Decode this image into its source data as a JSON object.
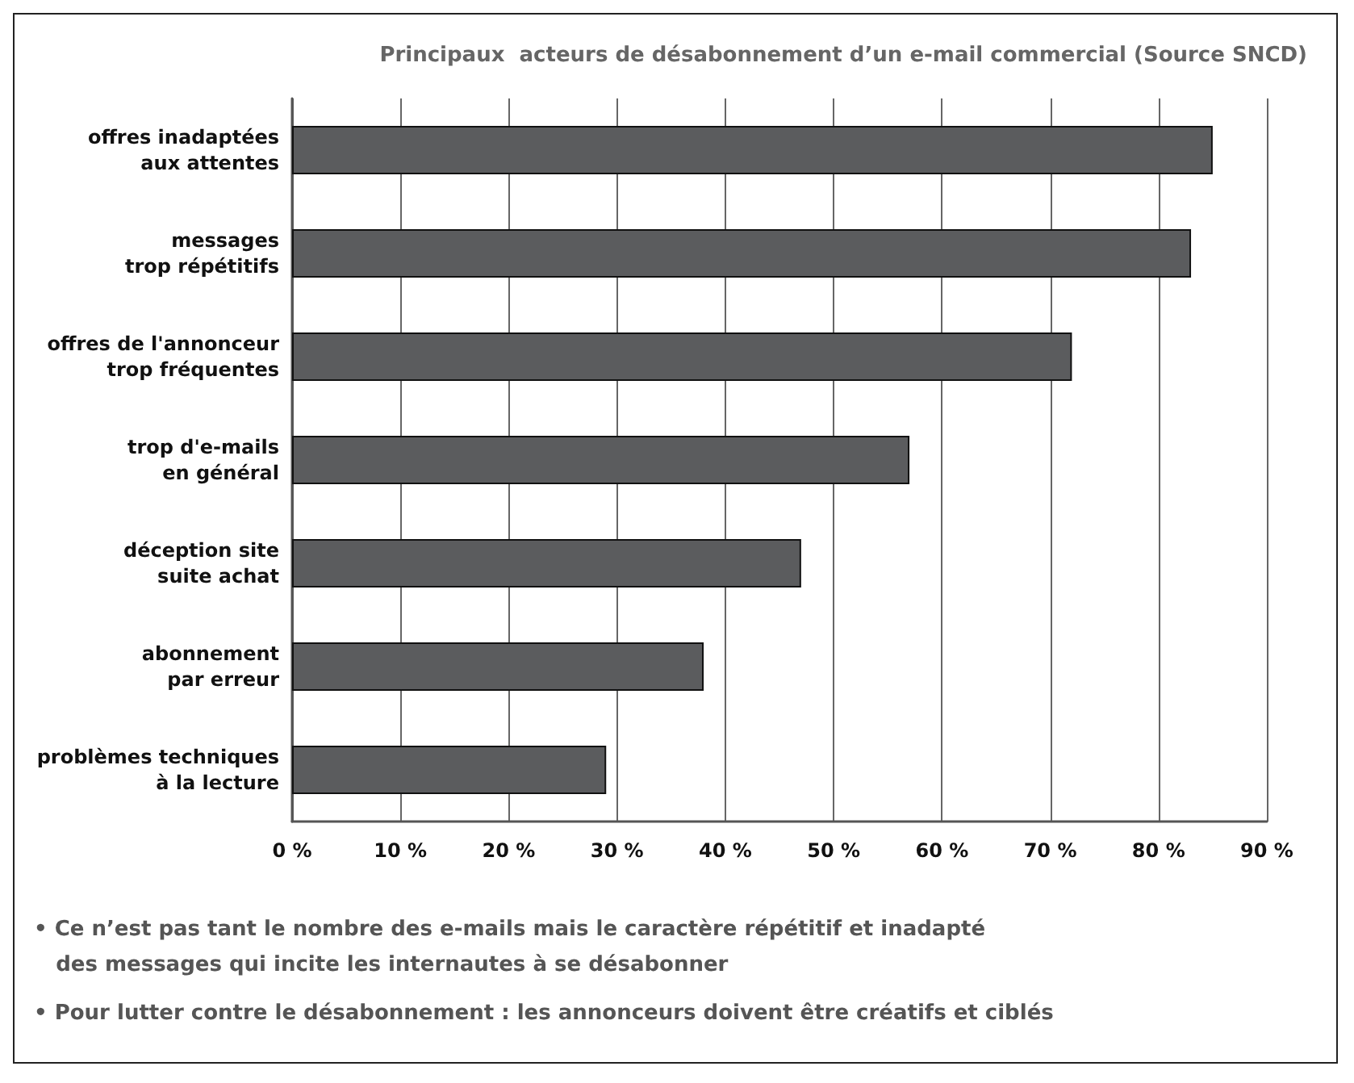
{
  "chart_data": {
    "type": "bar",
    "orientation": "horizontal",
    "title": "Principaux  acteurs de désabonnement d’un e-mail commercial (Source SNCD)",
    "categories": [
      "offres inadaptées\naux attentes",
      "messages\ntrop répétitifs",
      "offres de l'annonceur\ntrop fréquentes",
      "trop d'e-mails\nen général",
      "déception site\nsuite achat",
      "abonnement\npar erreur",
      "problèmes techniques\nà la lecture"
    ],
    "values": [
      85,
      83,
      72,
      57,
      47,
      38,
      29
    ],
    "color": "#5b5c5e",
    "xlim": [
      0,
      90
    ],
    "xticks": [
      {
        "value": 0,
        "label": "0 %"
      },
      {
        "value": 10,
        "label": "10 %"
      },
      {
        "value": 20,
        "label": "20 %"
      },
      {
        "value": 30,
        "label": "30 %"
      },
      {
        "value": 40,
        "label": "40 %"
      },
      {
        "value": 50,
        "label": "50 %"
      },
      {
        "value": 60,
        "label": "60 %"
      },
      {
        "value": 70,
        "label": "70 %"
      },
      {
        "value": 80,
        "label": "80 %"
      },
      {
        "value": 90,
        "label": "90 %"
      }
    ],
    "grid": "x",
    "annotations": [
      "• Ce n’est pas tant le nombre des e-mails mais le caractère répétitif et inadapté\n   des messages qui incite les internautes à se désabonner",
      "• Pour lutter contre le désabonnement : les annonceurs doivent être créatifs et ciblés"
    ]
  }
}
